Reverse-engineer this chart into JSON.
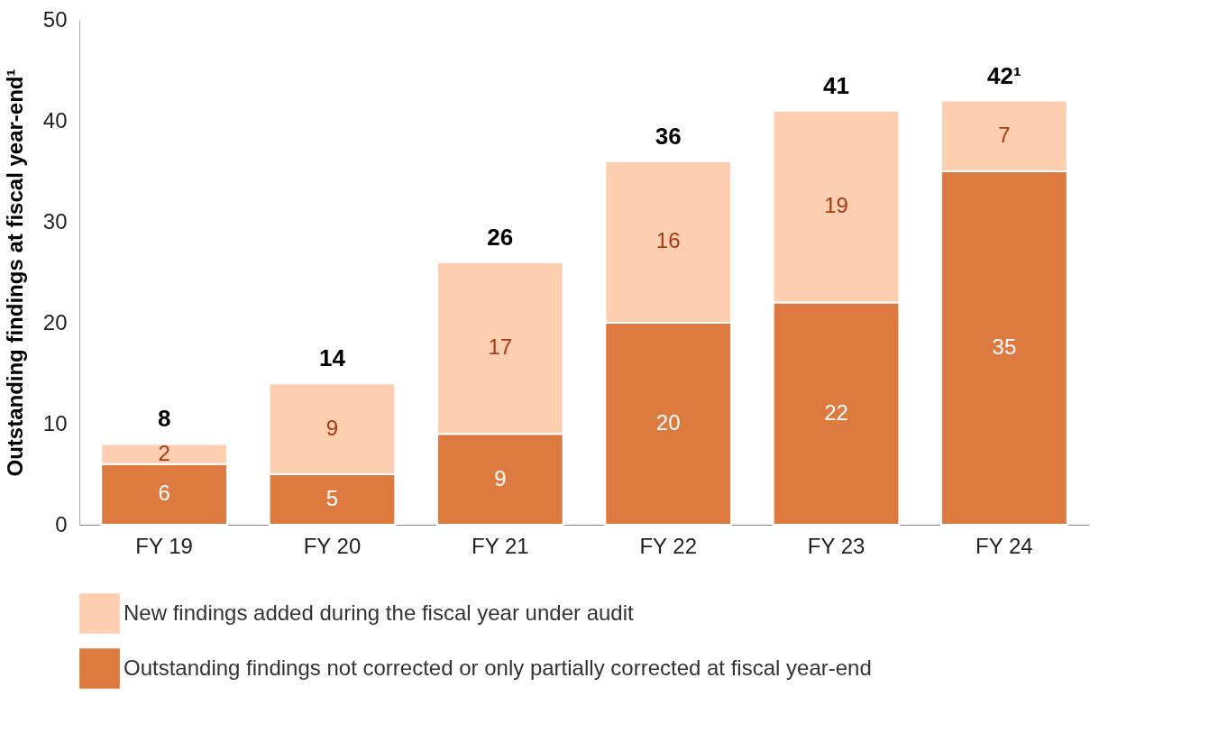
{
  "chart_data": {
    "type": "bar",
    "stacked": true,
    "ylabel": "Outstanding findings at fiscal year-end¹",
    "categories": [
      "FY 19",
      "FY 20",
      "FY 21",
      "FY 22",
      "FY 23",
      "FY 24"
    ],
    "series": [
      {
        "name": "Outstanding findings not corrected or only partially corrected at fiscal year-end",
        "color": "#dc7a40",
        "values": [
          6,
          5,
          9,
          20,
          22,
          35
        ]
      },
      {
        "name": "New findings added during the fiscal year under audit",
        "color": "#fdcfb0",
        "values": [
          2,
          9,
          17,
          16,
          19,
          7
        ]
      }
    ],
    "totals": [
      "8",
      "14",
      "26",
      "36",
      "41",
      "42¹"
    ],
    "ylim": [
      0,
      50
    ],
    "yticks": [
      0,
      10,
      20,
      30,
      40,
      50
    ],
    "grid": false,
    "legend": "bottom",
    "data_labels": true
  }
}
